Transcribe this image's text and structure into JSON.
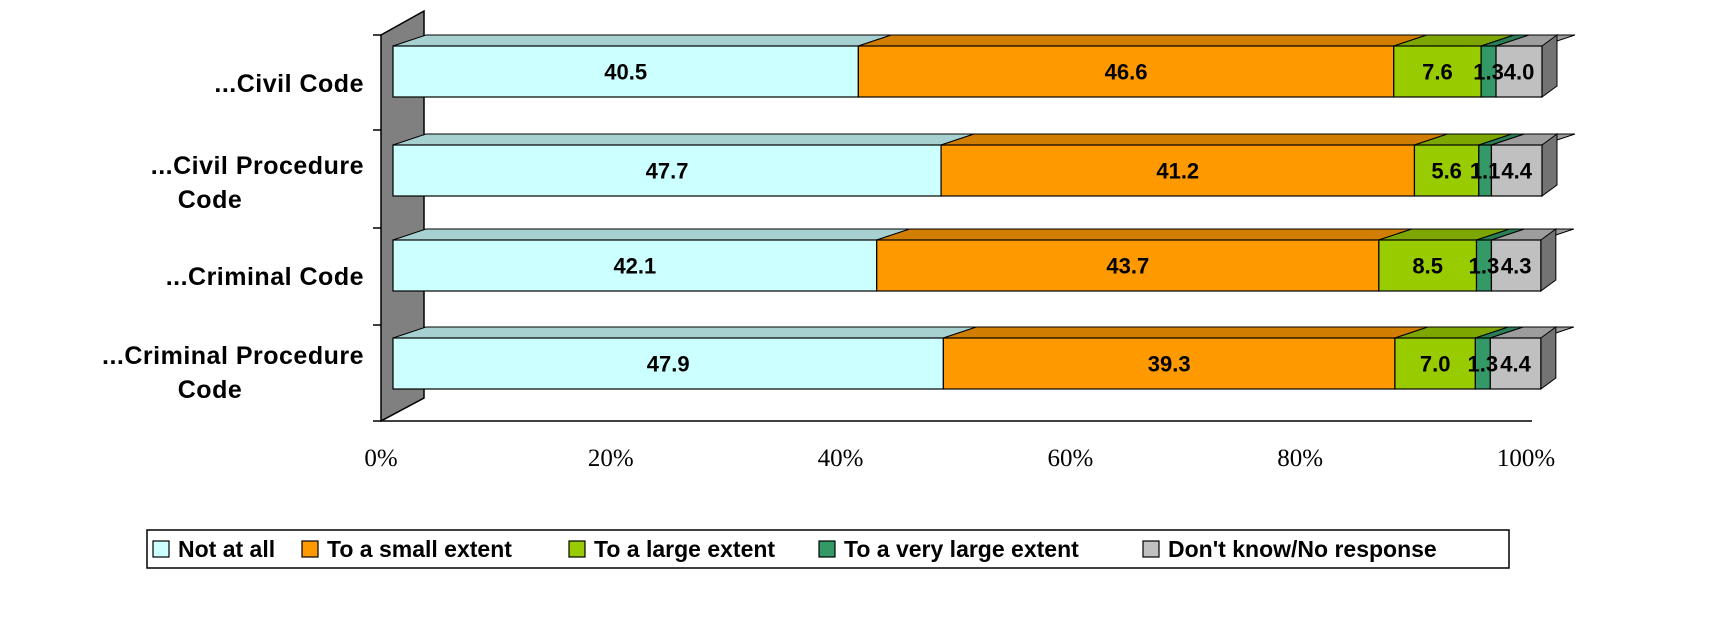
{
  "chart_data": {
    "type": "bar",
    "orientation": "horizontal",
    "stacked": "100%",
    "style": "3d",
    "categories": [
      "...Civil Code",
      "...Civil Procedure Code",
      "...Criminal Code",
      "...Criminal Procedure Code"
    ],
    "series": [
      {
        "name": "Not at all",
        "color": "#ccffff",
        "values": [
          40.5,
          47.7,
          42.1,
          47.9
        ]
      },
      {
        "name": "To a small extent",
        "color": "#ff9900",
        "values": [
          46.6,
          41.2,
          43.7,
          39.3
        ]
      },
      {
        "name": "To a large extent",
        "color": "#99cc00",
        "values": [
          7.6,
          5.6,
          8.5,
          7.0
        ]
      },
      {
        "name": "To a very large extent",
        "color": "#339966",
        "values": [
          1.3,
          1.1,
          1.3,
          1.3
        ]
      },
      {
        "name": "Don't know/No response",
        "color": "#c0c0c0",
        "values": [
          4.0,
          4.4,
          4.3,
          4.4
        ]
      }
    ],
    "value_labels": [
      [
        "40.5",
        "46.6",
        "7.6",
        "1.3",
        "4.0"
      ],
      [
        "47.7",
        "41.2",
        "5.6",
        "1.1",
        "4.4"
      ],
      [
        "42.1",
        "43.7",
        "8.5",
        "1.3",
        "4.3"
      ],
      [
        "47.9",
        "39.3",
        "7.0",
        "1.3",
        "4.4"
      ]
    ],
    "x_ticks": [
      "0%",
      "20%",
      "40%",
      "60%",
      "80%",
      "100%"
    ],
    "xlim": [
      0,
      100
    ],
    "grid": false,
    "legend_position": "bottom"
  }
}
